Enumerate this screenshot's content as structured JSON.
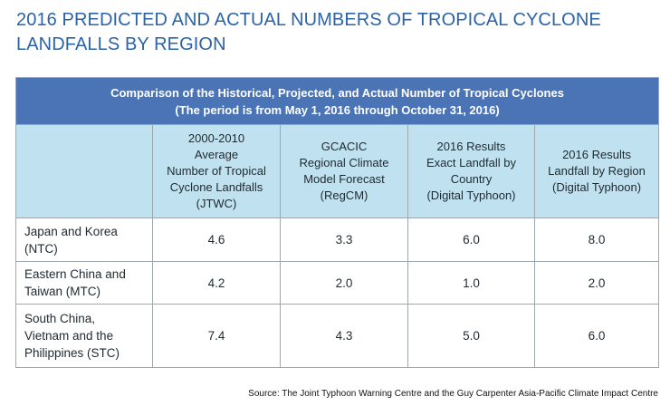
{
  "title": {
    "line1": "2016 PREDICTED AND ACTUAL NUMBERS OF TROPICAL CYCLONE",
    "line2": "LANDFALLS BY REGION"
  },
  "table": {
    "banner": {
      "line1": "Comparison of the Historical, Projected, and Actual Number of Tropical Cyclones",
      "line2": "(The period is from May 1, 2016 through October 31, 2016)"
    },
    "headers": [
      {
        "lines": []
      },
      {
        "lines": [
          "2000-2010",
          "Average",
          "Number of Tropical",
          "Cyclone Landfalls",
          "(JTWC)"
        ]
      },
      {
        "lines": [
          "GCACIC",
          "Regional Climate",
          "Model Forecast",
          "(RegCM)"
        ]
      },
      {
        "lines": [
          "2016 Results",
          "Exact Landfall by",
          "Country",
          "(Digital Typhoon)"
        ]
      },
      {
        "lines": [
          "2016 Results",
          "Landfall by Region",
          "(Digital Typhoon)"
        ]
      }
    ],
    "rows": [
      {
        "region": [
          "Japan and Korea",
          "(NTC)"
        ],
        "values": [
          "4.6",
          "3.3",
          "6.0",
          "8.0"
        ]
      },
      {
        "region": [
          "Eastern China and",
          "Taiwan (MTC)"
        ],
        "values": [
          "4.2",
          "2.0",
          "1.0",
          "2.0"
        ]
      },
      {
        "region": [
          "South China,",
          "Vietnam and the",
          "Philippines (STC)"
        ],
        "values": [
          "7.4",
          "4.3",
          "5.0",
          "6.0"
        ]
      }
    ]
  },
  "source": "Source: The Joint Typhoon Warning Centre and the Guy Carpenter Asia-Pacific Climate Impact Centre"
}
